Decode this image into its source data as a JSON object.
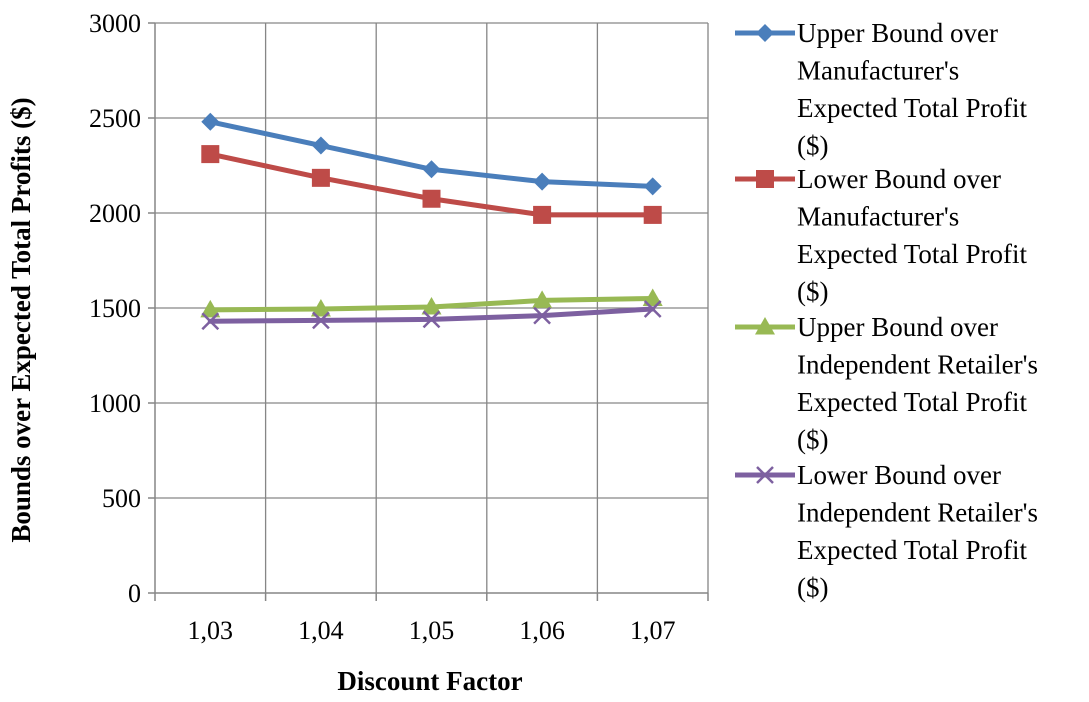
{
  "chart_data": {
    "type": "line",
    "title": "",
    "xlabel": "Discount Factor",
    "ylabel": "Bounds over Expected Total Profits ($)",
    "categories": [
      "1,03",
      "1,04",
      "1,05",
      "1,06",
      "1,07"
    ],
    "ylim": [
      0,
      3000
    ],
    "yticks": [
      0,
      500,
      1000,
      1500,
      2000,
      2500,
      3000
    ],
    "grid": true,
    "legend_position": "right",
    "series": [
      {
        "name": "Upper Bound over Manufacturer's Expected Total Profit ($)",
        "legend_lines": [
          "Upper Bound over",
          "Manufacturer's",
          "Expected Total Profit",
          "($)"
        ],
        "values": [
          2480,
          2355,
          2230,
          2165,
          2140
        ],
        "color": "#4a7ebb",
        "marker": "diamond"
      },
      {
        "name": "Lower Bound over Manufacturer's Expected Total Profit ($)",
        "legend_lines": [
          "Lower Bound over",
          "Manufacturer's",
          "Expected Total Profit",
          "($)"
        ],
        "values": [
          2310,
          2185,
          2075,
          1990,
          1990
        ],
        "color": "#be4b48",
        "marker": "square"
      },
      {
        "name": "Upper Bound over Independent Retailer's Expected Total Profit ($)",
        "legend_lines": [
          "Upper Bound over",
          "Independent Retailer's",
          "Expected Total Profit",
          "($)"
        ],
        "values": [
          1490,
          1495,
          1505,
          1540,
          1550
        ],
        "color": "#98b954",
        "marker": "triangle"
      },
      {
        "name": "Lower Bound over Independent Retailer's Expected Total Profit ($)",
        "legend_lines": [
          "Lower Bound over",
          "Independent Retailer's",
          "Expected Total Profit",
          "($)"
        ],
        "values": [
          1430,
          1435,
          1440,
          1460,
          1495
        ],
        "color": "#7d60a0",
        "marker": "x"
      }
    ]
  }
}
